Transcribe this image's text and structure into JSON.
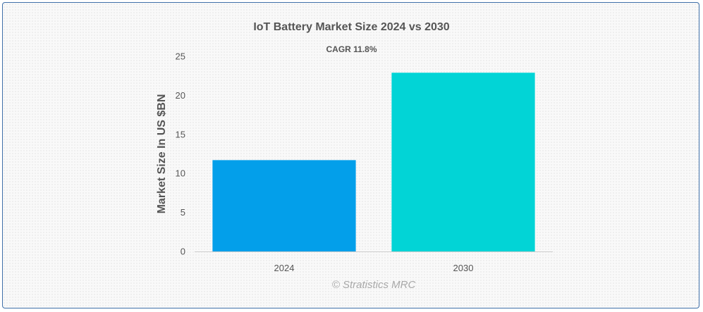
{
  "chart_data": {
    "type": "bar",
    "title": "IoT Battery Market Size 2024 vs 2030",
    "subtitle": "CAGR 11.8%",
    "ylabel": "Market Size In US $BN",
    "categories": [
      "2024",
      "2030"
    ],
    "values": [
      11.7,
      22.9
    ],
    "colors": [
      "#039fea",
      "#02d4d6"
    ],
    "ylim": [
      0,
      25
    ],
    "yticks": [
      0,
      5,
      10,
      15,
      20,
      25
    ],
    "grid": false,
    "legend": "none"
  },
  "watermark": "© Stratistics MRC",
  "colors": {
    "border": "#3f6fa8",
    "text": "#555555",
    "axis": "#cccccc"
  }
}
